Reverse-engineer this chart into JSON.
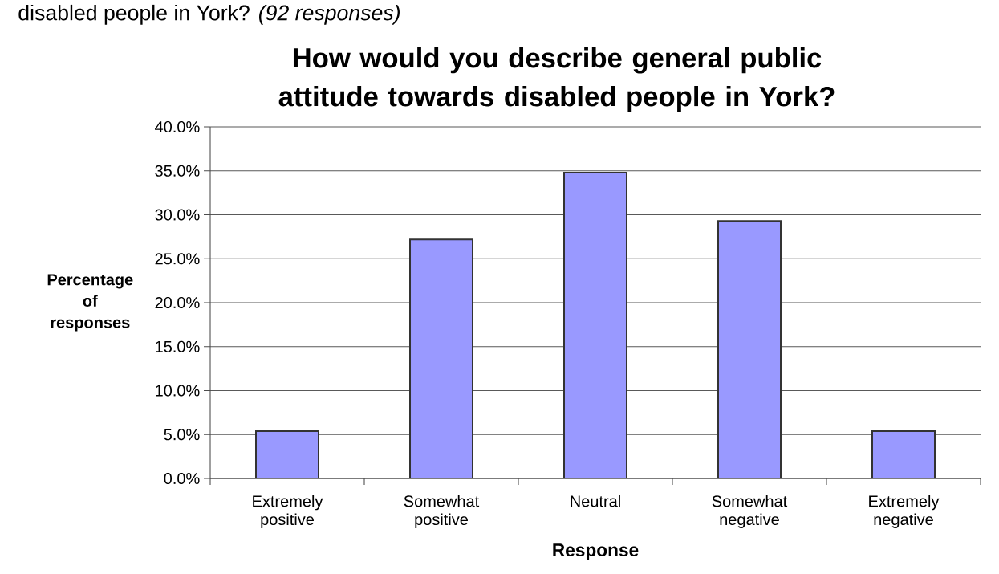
{
  "chart_data": {
    "type": "bar",
    "title": "How would you describe general public attitude towards disabled people in York?",
    "xlabel": "Response",
    "ylabel": "Percentage of responses",
    "annotations": [
      "disabled people in York? *(92 responses)*"
    ],
    "categories": [
      "Extremely positive",
      "Somewhat positive",
      "Neutral",
      "Somewhat negative",
      "Extremely negative"
    ],
    "values": [
      5.4,
      27.2,
      34.8,
      29.3,
      5.4
    ],
    "color": "#9999ff",
    "ylim": [
      0,
      40
    ],
    "yticks": [
      {
        "value": 0,
        "label": "0.0%"
      },
      {
        "value": 5,
        "label": "5.0%"
      },
      {
        "value": 10,
        "label": "10.0%"
      },
      {
        "value": 15,
        "label": "15.0%"
      },
      {
        "value": 20,
        "label": "20.0%"
      },
      {
        "value": 25,
        "label": "25.0%"
      },
      {
        "value": 30,
        "label": "30.0%"
      },
      {
        "value": 35,
        "label": "35.0%"
      },
      {
        "value": 40,
        "label": "40.0%"
      }
    ],
    "grid": "y"
  }
}
